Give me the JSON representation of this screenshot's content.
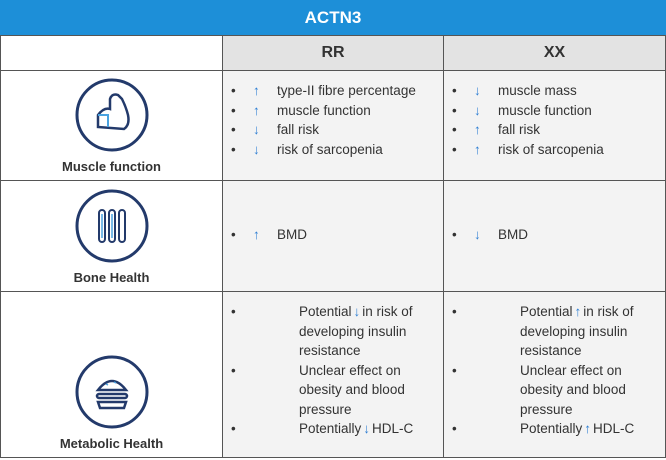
{
  "title": "ACTN3",
  "columns": [
    "RR",
    "XX"
  ],
  "rows": [
    {
      "label": "Muscle function",
      "cells": [
        [
          {
            "arrow": "↑",
            "text": "type-II fibre percentage"
          },
          {
            "arrow": "↑",
            "text": "muscle function"
          },
          {
            "arrow": "↓",
            "text": "fall risk"
          },
          {
            "arrow": "↓",
            "text": "risk of sarcopenia"
          }
        ],
        [
          {
            "arrow": "↓",
            "text": "muscle mass"
          },
          {
            "arrow": "↓",
            "text": "muscle function"
          },
          {
            "arrow": "↑",
            "text": "fall risk"
          },
          {
            "arrow": "↑",
            "text": "risk of sarcopenia"
          }
        ]
      ]
    },
    {
      "label": "Bone Health",
      "cells": [
        [
          {
            "arrow": "↑",
            "text": "BMD"
          }
        ],
        [
          {
            "arrow": "↓",
            "text": "BMD"
          }
        ]
      ]
    },
    {
      "label": "Metabolic Health",
      "cells": [
        [
          {
            "before": "Potential",
            "arrow": "↓",
            "text": "in risk of developing insulin resistance"
          },
          {
            "text": "Unclear effect on obesity and blood pressure"
          },
          {
            "before": "Potentially",
            "arrow": "↓",
            "text": "HDL-C"
          }
        ],
        [
          {
            "before": "Potential",
            "arrow": "↑",
            "text": "in risk of developing insulin resistance"
          },
          {
            "text": "Unclear effect on obesity and blood pressure"
          },
          {
            "before": "Potentially",
            "arrow": "↑",
            "text": "HDL-C"
          }
        ]
      ]
    }
  ]
}
